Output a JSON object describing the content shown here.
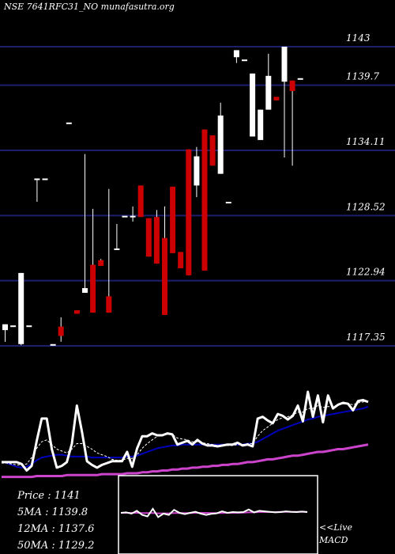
{
  "chart_data": {
    "type": "candlestick",
    "title": "NSE 7641RFC31_NO munafasutra.org",
    "y_tick_labels": [
      "1143",
      "1139.7",
      "1134.11",
      "1128.52",
      "1122.94",
      "1117.35"
    ],
    "y_ticks": [
      1143,
      1139.7,
      1134.11,
      1128.52,
      1122.94,
      1117.35
    ],
    "ylim": [
      1117.35,
      1143.0
    ],
    "grid": true,
    "candles": [
      {
        "o": 1118.7,
        "h": 1119.2,
        "l": 1117.7,
        "c": 1119.2
      },
      {
        "o": 1119.1,
        "h": 1119.1,
        "l": 1119.1,
        "c": 1119.1
      },
      {
        "o": 1117.5,
        "h": 1123.6,
        "l": 1117.4,
        "c": 1123.6
      },
      {
        "o": 1119.1,
        "h": 1119.1,
        "l": 1119.1,
        "c": 1119.1
      },
      {
        "o": 1131.7,
        "h": 1131.7,
        "l": 1129.7,
        "c": 1131.7
      },
      {
        "o": 1131.7,
        "h": 1131.7,
        "l": 1131.7,
        "c": 1131.7
      },
      {
        "o": 1117.5,
        "h": 1117.5,
        "l": 1117.5,
        "c": 1117.5
      },
      {
        "o": 1119.0,
        "h": 1119.8,
        "l": 1117.7,
        "c": 1118.2
      },
      {
        "o": 1136.5,
        "h": 1136.5,
        "l": 1136.5,
        "c": 1136.5
      },
      {
        "o": 1120.4,
        "h": 1120.4,
        "l": 1120.1,
        "c": 1120.1
      },
      {
        "o": 1121.9,
        "h": 1133.8,
        "l": 1121.9,
        "c": 1122.3
      },
      {
        "o": 1124.3,
        "h": 1129.1,
        "l": 1120.2,
        "c": 1120.2
      },
      {
        "o": 1124.7,
        "h": 1124.8,
        "l": 1124.2,
        "c": 1124.2
      },
      {
        "o": 1121.6,
        "h": 1130.8,
        "l": 1120.2,
        "c": 1120.2
      },
      {
        "o": 1125.7,
        "h": 1127.8,
        "l": 1125.7,
        "c": 1125.7
      },
      {
        "o": 1128.5,
        "h": 1128.5,
        "l": 1128.5,
        "c": 1128.5
      },
      {
        "o": 1128.5,
        "h": 1129.3,
        "l": 1128.0,
        "c": 1128.5
      },
      {
        "o": 1131.1,
        "h": 1131.1,
        "l": 1128.4,
        "c": 1128.4
      },
      {
        "o": 1128.3,
        "h": 1128.3,
        "l": 1125.0,
        "c": 1125.0
      },
      {
        "o": 1128.4,
        "h": 1129.0,
        "l": 1124.4,
        "c": 1124.4
      },
      {
        "o": 1126.6,
        "h": 1129.3,
        "l": 1120.0,
        "c": 1120.0
      },
      {
        "o": 1131.0,
        "h": 1131.0,
        "l": 1125.3,
        "c": 1125.3
      },
      {
        "o": 1125.4,
        "h": 1125.4,
        "l": 1124.0,
        "c": 1124.0
      },
      {
        "o": 1134.2,
        "h": 1134.2,
        "l": 1123.4,
        "c": 1123.4
      },
      {
        "o": 1131.1,
        "h": 1134.4,
        "l": 1130.1,
        "c": 1133.6
      },
      {
        "o": 1135.9,
        "h": 1135.9,
        "l": 1123.8,
        "c": 1123.8
      },
      {
        "o": 1135.4,
        "h": 1135.4,
        "l": 1132.8,
        "c": 1132.8
      },
      {
        "o": 1132.1,
        "h": 1138.2,
        "l": 1132.1,
        "c": 1137.1
      },
      {
        "o": 1129.7,
        "h": 1129.7,
        "l": 1129.7,
        "c": 1129.7
      },
      {
        "o": 1142.1,
        "h": 1142.7,
        "l": 1141.6,
        "c": 1142.7
      },
      {
        "o": 1141.9,
        "h": 1141.9,
        "l": 1141.9,
        "c": 1141.9
      },
      {
        "o": 1135.3,
        "h": 1140.7,
        "l": 1135.3,
        "c": 1140.7
      },
      {
        "o": 1135.0,
        "h": 1137.6,
        "l": 1135.0,
        "c": 1137.6
      },
      {
        "o": 1137.6,
        "h": 1142.4,
        "l": 1137.6,
        "c": 1140.5
      },
      {
        "o": 1138.7,
        "h": 1138.7,
        "l": 1138.4,
        "c": 1138.4
      },
      {
        "o": 1140.0,
        "h": 1143.0,
        "l": 1133.5,
        "c": 1143.0
      },
      {
        "o": 1140.1,
        "h": 1140.1,
        "l": 1132.8,
        "c": 1139.2
      },
      {
        "o": 1140.3,
        "h": 1140.3,
        "l": 1140.3,
        "c": 1140.3
      }
    ],
    "lower_panel": {
      "price_series": [
        0.24,
        0.24,
        0.24,
        0.24,
        0.22,
        0.15,
        0.2,
        0.47,
        0.71,
        0.71,
        0.38,
        0.18,
        0.2,
        0.24,
        0.44,
        0.85,
        0.57,
        0.25,
        0.21,
        0.18,
        0.21,
        0.23,
        0.25,
        0.25,
        0.25,
        0.35,
        0.19,
        0.39,
        0.52,
        0.52,
        0.55,
        0.53,
        0.53,
        0.55,
        0.54,
        0.43,
        0.45,
        0.47,
        0.43,
        0.48,
        0.44,
        0.42,
        0.42,
        0.41,
        0.42,
        0.43,
        0.43,
        0.45,
        0.42,
        0.43,
        0.41,
        0.71,
        0.73,
        0.69,
        0.66,
        0.76,
        0.74,
        0.7,
        0.74,
        0.85,
        0.68,
        1.0,
        0.73,
        0.96,
        0.67,
        0.96,
        0.82,
        0.86,
        0.88,
        0.87,
        0.8,
        0.9,
        0.91,
        0.89
      ],
      "ma5_series": [
        0.23,
        0.23,
        0.22,
        0.21,
        0.21,
        0.22,
        0.29,
        0.39,
        0.46,
        0.48,
        0.43,
        0.38,
        0.36,
        0.34,
        0.38,
        0.44,
        0.44,
        0.41,
        0.38,
        0.34,
        0.32,
        0.3,
        0.27,
        0.26,
        0.26,
        0.28,
        0.28,
        0.32,
        0.39,
        0.44,
        0.48,
        0.52,
        0.53,
        0.54,
        0.54,
        0.5,
        0.49,
        0.48,
        0.46,
        0.46,
        0.45,
        0.44,
        0.43,
        0.42,
        0.42,
        0.42,
        0.42,
        0.43,
        0.43,
        0.44,
        0.44,
        0.52,
        0.58,
        0.62,
        0.66,
        0.7,
        0.72,
        0.73,
        0.75,
        0.78,
        0.78,
        0.82,
        0.82,
        0.85,
        0.83,
        0.84,
        0.84,
        0.86,
        0.87,
        0.87,
        0.86,
        0.88,
        0.89,
        0.9
      ],
      "ma12_series": [
        0.24,
        0.23,
        0.21,
        0.19,
        0.18,
        0.19,
        0.22,
        0.26,
        0.29,
        0.3,
        0.31,
        0.32,
        0.32,
        0.31,
        0.3,
        0.3,
        0.3,
        0.3,
        0.29,
        0.29,
        0.29,
        0.29,
        0.29,
        0.29,
        0.29,
        0.3,
        0.3,
        0.31,
        0.33,
        0.35,
        0.37,
        0.39,
        0.4,
        0.41,
        0.42,
        0.42,
        0.43,
        0.43,
        0.43,
        0.43,
        0.43,
        0.43,
        0.43,
        0.43,
        0.43,
        0.43,
        0.43,
        0.43,
        0.43,
        0.44,
        0.44,
        0.46,
        0.49,
        0.52,
        0.55,
        0.58,
        0.6,
        0.62,
        0.64,
        0.66,
        0.68,
        0.7,
        0.71,
        0.73,
        0.74,
        0.75,
        0.76,
        0.77,
        0.78,
        0.79,
        0.8,
        0.81,
        0.82,
        0.84
      ],
      "ma50_series": [
        0.08,
        0.08,
        0.08,
        0.08,
        0.08,
        0.08,
        0.08,
        0.09,
        0.09,
        0.09,
        0.09,
        0.09,
        0.09,
        0.1,
        0.1,
        0.1,
        0.1,
        0.1,
        0.1,
        0.1,
        0.11,
        0.11,
        0.11,
        0.11,
        0.11,
        0.12,
        0.12,
        0.12,
        0.13,
        0.13,
        0.14,
        0.14,
        0.15,
        0.15,
        0.16,
        0.16,
        0.17,
        0.17,
        0.18,
        0.18,
        0.19,
        0.19,
        0.2,
        0.2,
        0.21,
        0.21,
        0.22,
        0.22,
        0.23,
        0.24,
        0.24,
        0.25,
        0.26,
        0.27,
        0.27,
        0.28,
        0.29,
        0.3,
        0.31,
        0.31,
        0.32,
        0.33,
        0.34,
        0.35,
        0.35,
        0.36,
        0.37,
        0.38,
        0.38,
        0.39,
        0.4,
        0.41,
        0.42,
        0.43
      ],
      "macd_series": [
        0.5,
        0.52,
        0.47,
        0.58,
        0.42,
        0.36,
        0.66,
        0.33,
        0.47,
        0.42,
        0.62,
        0.5,
        0.45,
        0.5,
        0.54,
        0.47,
        0.42,
        0.46,
        0.48,
        0.56,
        0.5,
        0.53,
        0.52,
        0.53,
        0.63,
        0.52,
        0.58,
        0.56,
        0.54,
        0.52,
        0.53,
        0.56,
        0.54,
        0.53,
        0.55,
        0.53
      ],
      "macd_signal_series": [
        0.5,
        0.5,
        0.5,
        0.5,
        0.49,
        0.49,
        0.49,
        0.48,
        0.48,
        0.48,
        0.49,
        0.49,
        0.49,
        0.49,
        0.5,
        0.5,
        0.5,
        0.49,
        0.49,
        0.49,
        0.5,
        0.5,
        0.5,
        0.51,
        0.52,
        0.52,
        0.53,
        0.53,
        0.53,
        0.53,
        0.54,
        0.54,
        0.54,
        0.54,
        0.54,
        0.54
      ],
      "stats": {
        "price": "Price  : 1141",
        "ma5": "5MA : 1139.8",
        "ma12": "12MA : 1137.6",
        "ma50": "50MA : 1129.2"
      },
      "macd_label_line1": "<<Live",
      "macd_label_line2": "MACD"
    },
    "colors": {
      "background": "#000000",
      "grid": "#1e1e6e",
      "up": "#ffffff",
      "down": "#cc0000",
      "price_line": "#ffffff",
      "ma5": "#ffffff",
      "ma12": "#0000bb",
      "ma50": "#cc44cc",
      "macd_box": "#ffffff"
    }
  }
}
